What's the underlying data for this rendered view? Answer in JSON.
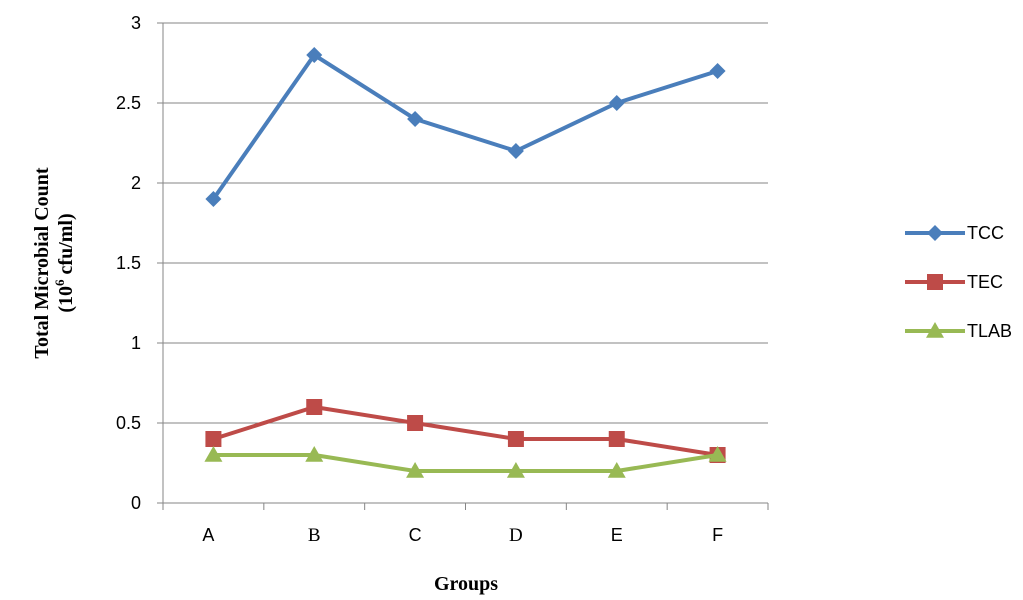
{
  "chart_data": {
    "type": "line",
    "categories": [
      "A",
      "B",
      "C",
      "D",
      "E",
      "F"
    ],
    "series": [
      {
        "name": "TCC",
        "values": [
          1.9,
          2.8,
          2.4,
          2.2,
          2.5,
          2.7
        ],
        "color": "#4a7ebb",
        "marker": "diamond"
      },
      {
        "name": "TEC",
        "values": [
          0.4,
          0.6,
          0.5,
          0.4,
          0.4,
          0.3
        ],
        "color": "#be4b48",
        "marker": "square"
      },
      {
        "name": "TLAB",
        "values": [
          0.3,
          0.3,
          0.2,
          0.2,
          0.2,
          0.3
        ],
        "color": "#98b954",
        "marker": "triangle"
      }
    ],
    "yticks": [
      "0",
      "0.5",
      "1",
      "1.5",
      "2",
      "2.5",
      "3"
    ],
    "ylim": [
      0,
      3
    ],
    "ylabel_line1": "Total Microbial Count",
    "ylabel_line2_prefix": "(10",
    "ylabel_line2_sup": "6",
    "ylabel_line2_suffix": " cfu/ml)",
    "xlabel": "Groups",
    "grid": true,
    "legend_position": "right"
  }
}
